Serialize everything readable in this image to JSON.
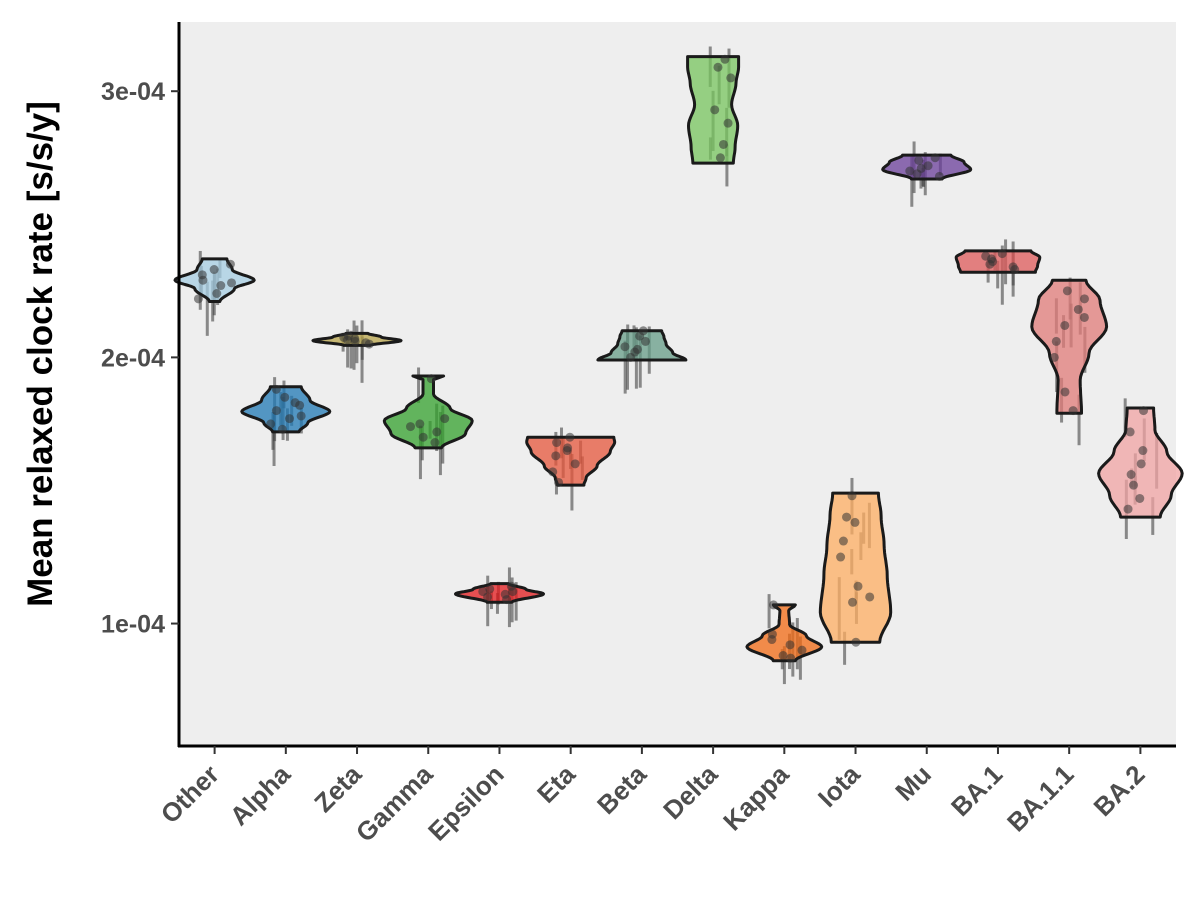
{
  "chart_data": {
    "type": "violin",
    "ylabel": "Mean relaxed clock rate [s/s/y]",
    "xlabel": "",
    "ylim": [
      5.4e-05,
      0.000326
    ],
    "yticks": [
      {
        "value": 0.0001,
        "label": "1e-04"
      },
      {
        "value": 0.0002,
        "label": "2e-04"
      },
      {
        "value": 0.0003,
        "label": "3e-04"
      }
    ],
    "grid": false,
    "panel_background": "#eeeeee",
    "categories": [
      "Other",
      "Alpha",
      "Zeta",
      "Gamma",
      "Epsilon",
      "Eta",
      "Beta",
      "Delta",
      "Kappa",
      "Iota",
      "Mu",
      "BA.1",
      "BA.1.1",
      "BA.2"
    ],
    "series": [
      {
        "category": "Other",
        "color": "#a6cee3",
        "min": 0.000221,
        "max": 0.000237,
        "median": 0.000229,
        "points": [
          0.000227,
          0.000231,
          0.000224,
          0.000233,
          0.000229,
          0.000222,
          0.000235,
          0.000228
        ],
        "profile": [
          [
            0,
            0.12
          ],
          [
            0.3,
            0.45
          ],
          [
            0.5,
            0.9
          ],
          [
            0.75,
            0.4
          ],
          [
            1,
            0.28
          ]
        ]
      },
      {
        "category": "Alpha",
        "color": "#1f78b4",
        "min": 0.000172,
        "max": 0.000189,
        "median": 0.00018,
        "points": [
          0.000175,
          0.000178,
          0.00018,
          0.000182,
          0.000185,
          0.000188,
          0.000177,
          0.000173,
          0.000183
        ],
        "profile": [
          [
            0,
            0.3
          ],
          [
            0.2,
            0.5
          ],
          [
            0.45,
            1.0
          ],
          [
            0.7,
            0.55
          ],
          [
            1,
            0.35
          ]
        ]
      },
      {
        "category": "Zeta",
        "color": "#b8a44a",
        "min": 0.0002045,
        "max": 0.000209,
        "median": 0.0002065,
        "points": [
          0.000205,
          0.000206,
          0.000207,
          0.000208,
          0.0002065,
          0.0002055,
          0.0002075
        ],
        "profile": [
          [
            0,
            0.3
          ],
          [
            0.4,
            1.0
          ],
          [
            0.7,
            0.55
          ],
          [
            1,
            0.25
          ]
        ]
      },
      {
        "category": "Gamma",
        "color": "#33a02c",
        "min": 0.000166,
        "max": 0.000193,
        "median": 0.000175,
        "points": [
          0.000168,
          0.000172,
          0.000175,
          0.000177,
          0.000174,
          0.00017,
          0.000192
        ],
        "profile": [
          [
            0,
            0.3
          ],
          [
            0.2,
            0.85
          ],
          [
            0.38,
            1.0
          ],
          [
            0.55,
            0.5
          ],
          [
            0.75,
            0.12
          ],
          [
            0.95,
            0.12
          ],
          [
            1,
            0.35
          ]
        ]
      },
      {
        "category": "Epsilon",
        "color": "#e31a1c",
        "min": 0.000108,
        "max": 0.000115,
        "median": 0.000112,
        "points": [
          0.000109,
          0.000111,
          0.000112,
          0.000113,
          0.000114,
          0.00011,
          0.000112
        ],
        "profile": [
          [
            0,
            0.28
          ],
          [
            0.45,
            1.0
          ],
          [
            0.7,
            0.6
          ],
          [
            1,
            0.2
          ]
        ]
      },
      {
        "category": "Eta",
        "color": "#e5553b",
        "min": 0.000152,
        "max": 0.00017,
        "median": 0.000163,
        "points": [
          0.000153,
          0.000157,
          0.00016,
          0.000163,
          0.000165,
          0.000168,
          0.00017,
          0.000166
        ],
        "profile": [
          [
            0,
            0.3
          ],
          [
            0.15,
            0.35
          ],
          [
            0.4,
            0.6
          ],
          [
            0.7,
            0.9
          ],
          [
            0.9,
            1.0
          ],
          [
            1,
            0.98
          ]
        ]
      },
      {
        "category": "Beta",
        "color": "#669c87",
        "min": 0.000199,
        "max": 0.00021,
        "median": 0.000204,
        "points": [
          0.0002,
          0.000202,
          0.000204,
          0.000206,
          0.000208,
          0.000203,
          0.00021
        ],
        "profile": [
          [
            0,
            1.0
          ],
          [
            0.25,
            0.7
          ],
          [
            0.55,
            0.55
          ],
          [
            0.8,
            0.5
          ],
          [
            1,
            0.45
          ]
        ]
      },
      {
        "category": "Delta",
        "color": "#77c45d",
        "min": 0.000273,
        "max": 0.000313,
        "median": 0.000292,
        "points": [
          0.000275,
          0.00028,
          0.000288,
          0.000293,
          0.000305,
          0.000309,
          0.000312
        ],
        "profile": [
          [
            0,
            0.46
          ],
          [
            0.15,
            0.5
          ],
          [
            0.35,
            0.56
          ],
          [
            0.55,
            0.42
          ],
          [
            0.75,
            0.52
          ],
          [
            0.9,
            0.58
          ],
          [
            1,
            0.58
          ]
        ]
      },
      {
        "category": "Kappa",
        "color": "#f16913",
        "min": 8.6e-05,
        "max": 0.000107,
        "median": 9.1e-05,
        "points": [
          8.8e-05,
          9e-05,
          9.2e-05,
          9.4e-05,
          8.7e-05,
          9.6e-05,
          0.000107
        ],
        "profile": [
          [
            0,
            0.25
          ],
          [
            0.25,
            0.85
          ],
          [
            0.45,
            0.5
          ],
          [
            0.65,
            0.12
          ],
          [
            0.9,
            0.1
          ],
          [
            1,
            0.25
          ]
        ]
      },
      {
        "category": "Iota",
        "color": "#fdae61",
        "min": 9.3e-05,
        "max": 0.000149,
        "median": 0.000117,
        "points": [
          0.000108,
          0.00011,
          0.000114,
          0.000125,
          0.000131,
          0.000138,
          0.00014,
          0.000148,
          9.3e-05
        ],
        "profile": [
          [
            0,
            0.55
          ],
          [
            0.2,
            0.8
          ],
          [
            0.45,
            0.72
          ],
          [
            0.65,
            0.65
          ],
          [
            0.85,
            0.58
          ],
          [
            1,
            0.52
          ]
        ]
      },
      {
        "category": "Mu",
        "color": "#6a3d9a",
        "min": 0.000267,
        "max": 0.000276,
        "median": 0.000271,
        "points": [
          0.000268,
          0.00027,
          0.000272,
          0.000274,
          0.000271,
          0.000269,
          0.000275
        ],
        "profile": [
          [
            0,
            0.35
          ],
          [
            0.4,
            1.0
          ],
          [
            0.7,
            0.85
          ],
          [
            1,
            0.55
          ]
        ]
      },
      {
        "category": "BA.1",
        "color": "#de5a5a",
        "min": 0.000232,
        "max": 0.00024,
        "median": 0.000236,
        "points": [
          0.000233,
          0.000235,
          0.000236,
          0.000237,
          0.000238,
          0.000234,
          0.000239
        ],
        "profile": [
          [
            0,
            0.85
          ],
          [
            0.3,
            0.9
          ],
          [
            0.7,
            0.95
          ],
          [
            1,
            0.75
          ]
        ]
      },
      {
        "category": "BA.1.1",
        "color": "#e07b78",
        "min": 0.000179,
        "max": 0.000229,
        "median": 0.00021,
        "points": [
          0.00018,
          0.000187,
          0.0002,
          0.000206,
          0.000212,
          0.000215,
          0.000218,
          0.000222,
          0.000225
        ],
        "profile": [
          [
            0,
            0.28
          ],
          [
            0.25,
            0.25
          ],
          [
            0.45,
            0.45
          ],
          [
            0.65,
            0.85
          ],
          [
            0.85,
            0.7
          ],
          [
            1,
            0.38
          ]
        ]
      },
      {
        "category": "BA.2",
        "color": "#f0a3a3",
        "min": 0.00014,
        "max": 0.000181,
        "median": 0.000157,
        "points": [
          0.000143,
          0.000147,
          0.000152,
          0.000156,
          0.00016,
          0.000165,
          0.000172,
          0.00018
        ],
        "profile": [
          [
            0,
            0.45
          ],
          [
            0.2,
            0.7
          ],
          [
            0.4,
            0.95
          ],
          [
            0.6,
            0.6
          ],
          [
            0.8,
            0.33
          ],
          [
            1,
            0.3
          ]
        ]
      }
    ]
  }
}
